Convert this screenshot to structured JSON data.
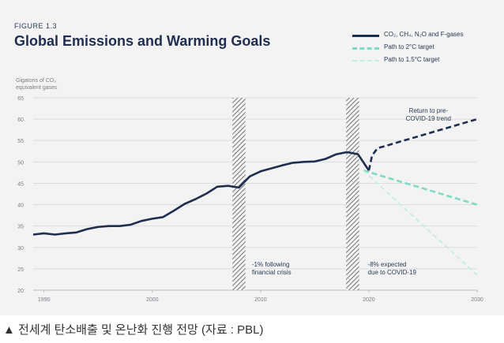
{
  "figure": {
    "label": "FIGURE 1.3",
    "title": "Global Emissions and Warming Goals"
  },
  "legend": [
    {
      "label": "CO₂, CH₄, N₂O and F-gases",
      "style": "solid",
      "color": "#1f2d4e"
    },
    {
      "label": "Path to 2°C target",
      "style": "dashed",
      "color": "#7fd9c4"
    },
    {
      "label": "Path to 1.5°C target",
      "style": "dashed",
      "color": "#c4ede4"
    }
  ],
  "caption": "▲ 전세계 탄소배출 및 온난화 진행 전망 (자료 : PBL)",
  "chart_data": {
    "type": "line",
    "ylabel_lines": [
      "Gigatons of CO₂",
      "equivalent gases"
    ],
    "xlim": [
      1989,
      2030
    ],
    "ylim": [
      20,
      65
    ],
    "x_ticks": [
      1990,
      2000,
      2010,
      2020,
      2030
    ],
    "y_ticks": [
      20,
      25,
      30,
      35,
      40,
      45,
      50,
      55,
      60,
      65
    ],
    "grid": true,
    "legend_position": "top-right",
    "series": [
      {
        "name": "CO₂, CH₄, N₂O and F-gases",
        "style": "solid",
        "color": "#1f2d4e",
        "x": [
          1989,
          1990,
          1991,
          1992,
          1993,
          1994,
          1995,
          1996,
          1997,
          1998,
          1999,
          2000,
          2001,
          2002,
          2003,
          2004,
          2005,
          2006,
          2007,
          2008,
          2009,
          2010,
          2011,
          2012,
          2013,
          2014,
          2015,
          2016,
          2017,
          2018,
          2019,
          2020
        ],
        "y": [
          33,
          33.3,
          33,
          33.3,
          33.5,
          34.3,
          34.8,
          35,
          35,
          35.3,
          36.2,
          36.7,
          37.1,
          38.6,
          40.2,
          41.3,
          42.6,
          44.2,
          44.4,
          44,
          46.6,
          47.8,
          48.5,
          49.2,
          49.8,
          50,
          50.1,
          50.7,
          51.8,
          52.3,
          51.8,
          48
        ]
      },
      {
        "name": "Return to pre-COVID-19 trend",
        "style": "dashed",
        "color": "#1f2d4e",
        "x": [
          2020,
          2020.3,
          2020.8,
          2030
        ],
        "y": [
          48,
          51.5,
          53.2,
          60
        ]
      },
      {
        "name": "Path to 2°C target",
        "style": "dashed",
        "color": "#7fd9c4",
        "x": [
          2019.5,
          2030
        ],
        "y": [
          48,
          40
        ]
      },
      {
        "name": "Path to 1.5°C target",
        "style": "dashed",
        "color": "#c4ede4",
        "x": [
          2019.5,
          2030
        ],
        "y": [
          48,
          23.5
        ]
      }
    ],
    "hatched_periods": [
      {
        "x_start": 2007.4,
        "x_end": 2008.6
      },
      {
        "x_start": 2017.9,
        "x_end": 2019.1
      }
    ],
    "annotations": [
      {
        "lines": [
          "Return to pre-",
          "COVID-19 trend"
        ],
        "x": 2025.5,
        "y": 61.5,
        "align": "middle"
      },
      {
        "lines": [
          "-1% following",
          "financial crisis"
        ],
        "x": 2009.2,
        "y": 25.5,
        "align": "start"
      },
      {
        "lines": [
          "-8% expected",
          "due to COVID-19"
        ],
        "x": 2019.9,
        "y": 25.5,
        "align": "start"
      }
    ]
  }
}
